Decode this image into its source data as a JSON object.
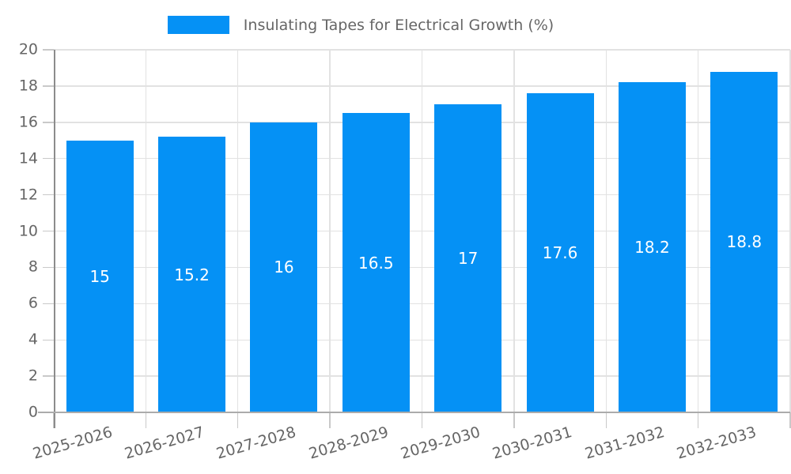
{
  "legend": {
    "label": "Insulating Tapes for Electrical Growth (%)"
  },
  "colors": {
    "bar": "#0591f5",
    "grid": "#e2e2e2",
    "tick": "#c9c9c9",
    "spine_left": "#8c8c8c",
    "spine_bottom": "#ababab",
    "tick_text": "#666666",
    "value_label_text": "#ffffff",
    "background": "#ffffff"
  },
  "chart_data": {
    "type": "bar",
    "title": "",
    "legend_label": "Insulating Tapes for Electrical Growth (%)",
    "legend_position": "top-center",
    "categories": [
      "2025-2026",
      "2026-2027",
      "2027-2028",
      "2028-2029",
      "2029-2030",
      "2030-2031",
      "2031-2032",
      "2032-2033"
    ],
    "values": [
      15,
      15.2,
      16,
      16.5,
      17,
      17.6,
      18.2,
      18.8
    ],
    "value_labels": [
      "15",
      "15.2",
      "16",
      "16.5",
      "17",
      "17.6",
      "18.2",
      "18.8"
    ],
    "xlabel": "",
    "ylabel": "",
    "ylim": [
      0,
      20
    ],
    "ytick_step": 2,
    "yticks": [
      0,
      2,
      4,
      6,
      8,
      10,
      12,
      14,
      16,
      18,
      20
    ],
    "grid": true,
    "value_labels_inside": true,
    "xtick_label_rotation_deg": -16
  }
}
